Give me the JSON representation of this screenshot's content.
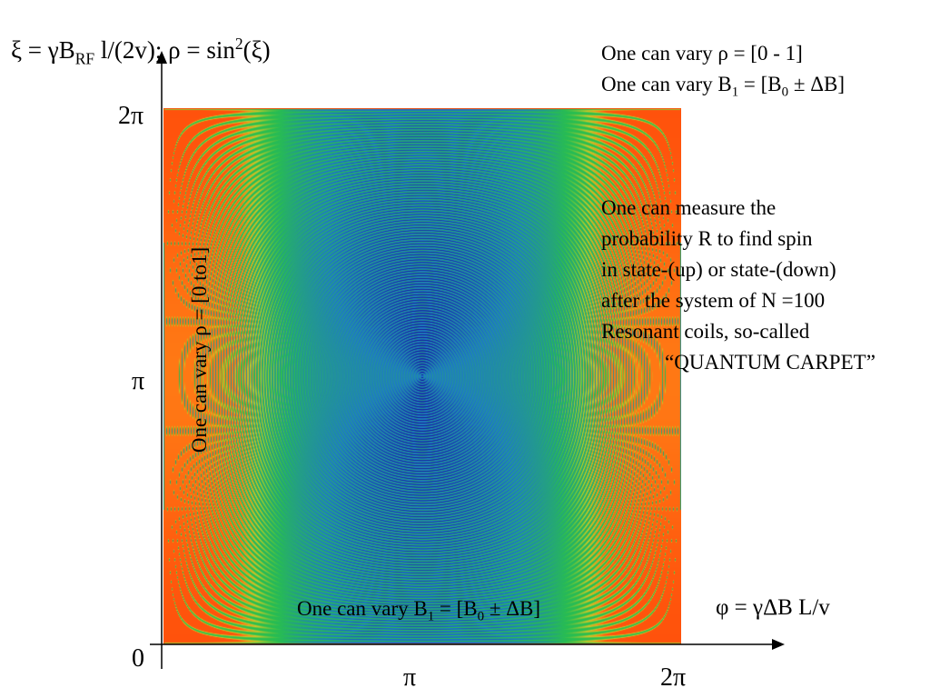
{
  "colors": {
    "carpet_high": "#ff1a00",
    "carpet_low": "#1a1aa0",
    "background": "#ffffff",
    "axis": "#000000"
  },
  "formula": {
    "xi_part_a": "ξ = γB",
    "xi_sub": "RF",
    "xi_part_b": " l/(2v); ρ = sin",
    "rho_sup": "2",
    "rho_part_c": "(ξ)"
  },
  "notes": {
    "vary_rho": "One can vary ρ = [0 - 1]",
    "vary_b1_prefix": "One can vary B",
    "vary_b1_sub1": "1",
    "vary_b1_mid": " = [B",
    "vary_b1_sub0": "0",
    "vary_b1_suffix": " ± ΔB]",
    "measure_lines": [
      "One can measure the",
      "probability R to find spin",
      "in state-(up) or state-(down)",
      "after the system of N =100",
      "Resonant coils, so-called"
    ],
    "quantum_carpet": "“QUANTUM CARPET”"
  },
  "axis_labels": {
    "y_2pi": "2π",
    "y_pi": "π",
    "origin": "0",
    "x_pi": "π",
    "x_2pi": "2π",
    "phi_formula": "φ = γΔB L/v",
    "vertical_note": "One can vary ρ = [0 to1]",
    "bottom_note_prefix": "One can vary B",
    "bottom_note_sub1": "1",
    "bottom_note_mid": " = [B",
    "bottom_note_sub0": "0",
    "bottom_note_suffix": " ± ΔB]"
  },
  "carpet": {
    "N": 100,
    "x_range": [
      "0",
      "2π"
    ],
    "y_range": [
      "0",
      "2π"
    ]
  }
}
